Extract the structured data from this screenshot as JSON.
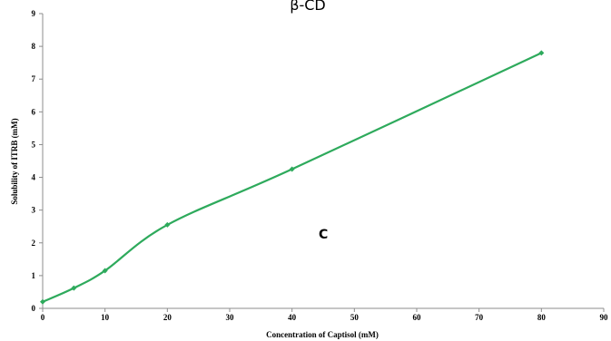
{
  "chart_data": {
    "type": "line",
    "title": "β-CD",
    "xlabel": "Concentration of Captisol (mM)",
    "ylabel": "Solubility of ITRB (mM)",
    "xlim": [
      0,
      90
    ],
    "ylim": [
      0,
      9
    ],
    "x_ticks": [
      "0",
      "10",
      "20",
      "30",
      "40",
      "50",
      "60",
      "70",
      "80",
      "90"
    ],
    "y_ticks": [
      "0",
      "1",
      "2",
      "3",
      "4",
      "5",
      "6",
      "7",
      "8",
      "9"
    ],
    "grid": false,
    "series": [
      {
        "color": "#2eaa5c",
        "x": [
          0,
          5,
          10,
          20,
          40,
          80
        ],
        "y": [
          0.2,
          0.62,
          1.15,
          2.55,
          4.25,
          7.8
        ]
      }
    ],
    "annotation": "C"
  }
}
